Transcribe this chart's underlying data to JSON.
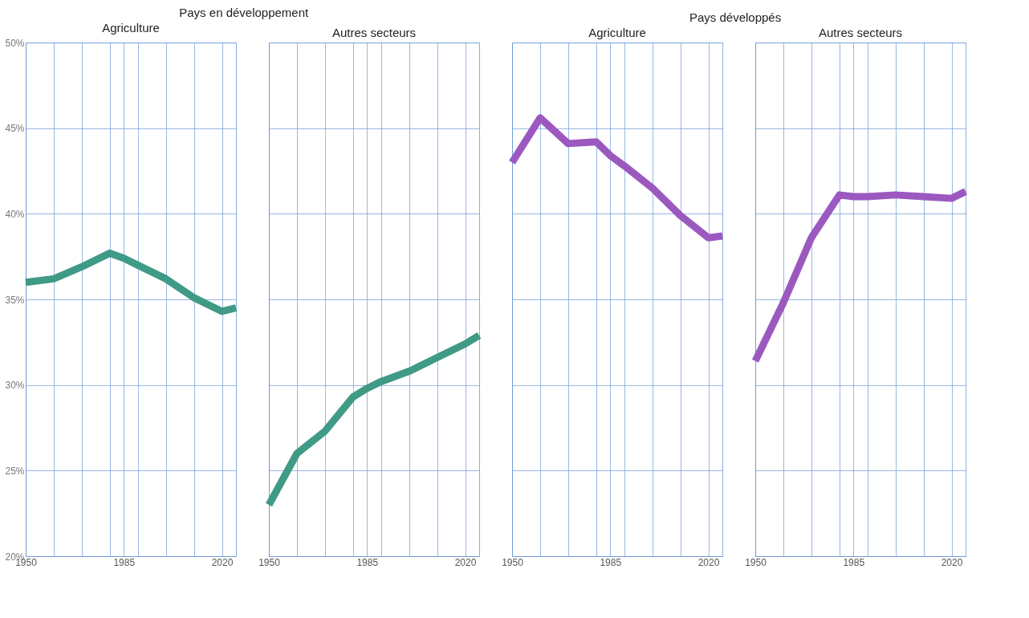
{
  "chart_data": [
    {
      "type": "line",
      "title": "Pays en développement",
      "subtitle": "Agriculture",
      "x": [
        1950,
        1960,
        1970,
        1980,
        1985,
        1990,
        2000,
        2010,
        2020,
        2025
      ],
      "series": [
        {
          "color": "#3f9a86",
          "values": [
            36.0,
            36.2,
            36.9,
            37.7,
            37.4,
            37.0,
            36.2,
            35.1,
            34.3,
            34.5
          ]
        }
      ],
      "xlim": [
        1950,
        2025
      ],
      "xticks": [
        1950,
        {
          "value": 1960,
          "label": null
        },
        {
          "value": 1970,
          "label": null
        },
        {
          "value": 1980,
          "label": null
        },
        1985,
        {
          "value": 1990,
          "label": null
        },
        {
          "value": 2000,
          "label": null
        },
        {
          "value": 2010,
          "label": null
        },
        2020
      ],
      "ylim": [
        20,
        50
      ],
      "yticks": [
        {
          "value": 20,
          "label": "20%"
        },
        {
          "value": 25,
          "label": "25%"
        },
        {
          "value": 30,
          "label": "30%"
        },
        {
          "value": 35,
          "label": "35%"
        },
        {
          "value": 40,
          "label": "40%"
        },
        {
          "value": 45,
          "label": "45%"
        },
        {
          "value": 50,
          "label": "50%"
        }
      ],
      "grid": true,
      "line_style": "solid",
      "marker": "none"
    },
    {
      "type": "line",
      "subtitle": "Autres secteurs",
      "x": [
        1950,
        1960,
        1970,
        1980,
        1985,
        1990,
        2000,
        2010,
        2020,
        2025
      ],
      "series": [
        {
          "color": "#3f9a86",
          "values": [
            23.0,
            26.0,
            27.3,
            29.3,
            29.8,
            30.2,
            30.8,
            31.6,
            32.4,
            32.9
          ]
        }
      ],
      "xlim": [
        1950,
        2025
      ],
      "xticks": [
        1950,
        {
          "value": 1960,
          "label": null
        },
        {
          "value": 1970,
          "label": null
        },
        {
          "value": 1980,
          "label": null
        },
        1985,
        {
          "value": 1990,
          "label": null
        },
        {
          "value": 2000,
          "label": null
        },
        {
          "value": 2010,
          "label": null
        },
        2020
      ],
      "ylim": [
        20,
        50
      ],
      "yticks": [
        {
          "value": 20,
          "label": null
        },
        {
          "value": 25,
          "label": null
        },
        {
          "value": 30,
          "label": null
        },
        {
          "value": 35,
          "label": null
        },
        {
          "value": 40,
          "label": null
        },
        {
          "value": 45,
          "label": null
        },
        {
          "value": 50,
          "label": null
        }
      ],
      "grid": true,
      "line_style": "solid",
      "marker": "none",
      "tick_labels": "x"
    },
    {
      "type": "line",
      "title": "Pays développés",
      "subtitle": "Agriculture",
      "x": [
        1950,
        1960,
        1970,
        1980,
        1985,
        1990,
        2000,
        2010,
        2020,
        2025
      ],
      "series": [
        {
          "color": "#9b59c0",
          "values": [
            43.0,
            45.6,
            44.1,
            44.2,
            43.4,
            42.8,
            41.5,
            39.9,
            38.6,
            38.7
          ]
        }
      ],
      "xlim": [
        1950,
        2025
      ],
      "xticks": [
        1950,
        {
          "value": 1960,
          "label": null
        },
        {
          "value": 1970,
          "label": null
        },
        {
          "value": 1980,
          "label": null
        },
        1985,
        {
          "value": 1990,
          "label": null
        },
        {
          "value": 2000,
          "label": null
        },
        {
          "value": 2010,
          "label": null
        },
        2020
      ],
      "ylim": [
        20,
        50
      ],
      "yticks": [
        {
          "value": 20,
          "label": null
        },
        {
          "value": 25,
          "label": null
        },
        {
          "value": 30,
          "label": null
        },
        {
          "value": 35,
          "label": null
        },
        {
          "value": 40,
          "label": null
        },
        {
          "value": 45,
          "label": null
        },
        {
          "value": 50,
          "label": null
        }
      ],
      "grid": true,
      "line_style": "solid",
      "marker": "none",
      "tick_labels": "x"
    },
    {
      "type": "line",
      "subtitle": "Autres secteurs",
      "x": [
        1950,
        1960,
        1970,
        1980,
        1985,
        1990,
        2000,
        2010,
        2020,
        2025
      ],
      "series": [
        {
          "color": "#9b59c0",
          "values": [
            31.4,
            34.8,
            38.6,
            41.1,
            41.0,
            41.0,
            41.1,
            41.0,
            40.9,
            41.3
          ]
        }
      ],
      "xlim": [
        1950,
        2025
      ],
      "xticks": [
        1950,
        {
          "value": 1960,
          "label": null
        },
        {
          "value": 1970,
          "label": null
        },
        {
          "value": 1980,
          "label": null
        },
        1985,
        {
          "value": 1990,
          "label": null
        },
        {
          "value": 2000,
          "label": null
        },
        {
          "value": 2010,
          "label": null
        },
        2020
      ],
      "ylim": [
        20,
        50
      ],
      "yticks": [
        {
          "value": 20,
          "label": null
        },
        {
          "value": 25,
          "label": null
        },
        {
          "value": 30,
          "label": null
        },
        {
          "value": 35,
          "label": null
        },
        {
          "value": 40,
          "label": null
        },
        {
          "value": 45,
          "label": null
        },
        {
          "value": 50,
          "label": null
        }
      ],
      "grid": true,
      "line_style": "solid",
      "marker": "none",
      "tick_labels": "x"
    }
  ]
}
